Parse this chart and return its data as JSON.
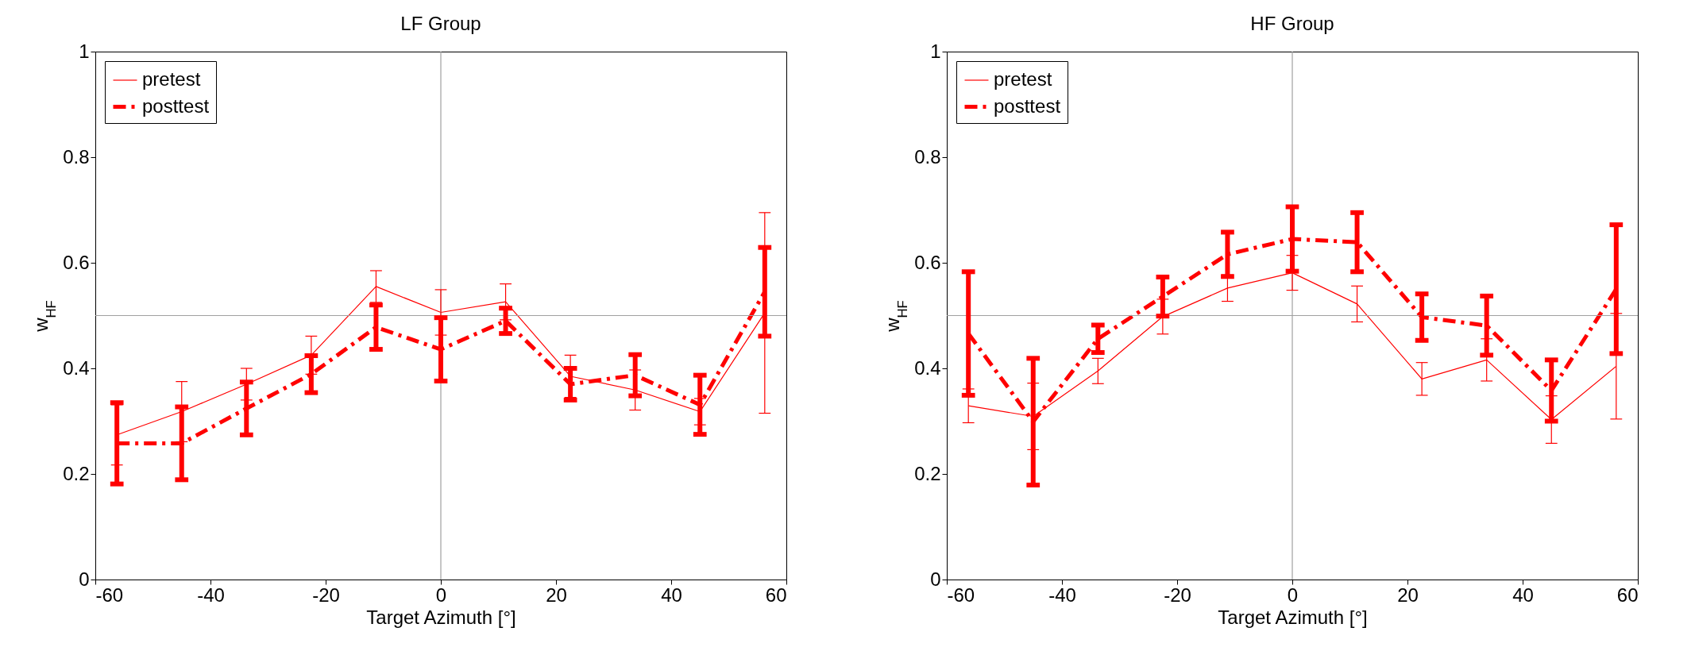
{
  "chart_data": [
    {
      "type": "line",
      "title": "LF Group",
      "xlabel": "Target Azimuth [°]",
      "ylabel": "w$_{HF}$",
      "x": [
        -56.25,
        -45,
        -33.75,
        -22.5,
        -11.25,
        0,
        11.25,
        22.5,
        33.75,
        45,
        56.25
      ],
      "series": [
        {
          "name": "pretest",
          "color": "#ff0000",
          "line_style": "solid",
          "values": [
            0.274,
            0.318,
            0.37,
            0.425,
            0.555,
            0.506,
            0.526,
            0.385,
            0.359,
            0.318,
            0.505
          ],
          "errors": [
            0.057,
            0.057,
            0.03,
            0.036,
            0.03,
            0.043,
            0.034,
            0.04,
            0.038,
            0.025,
            0.19
          ]
        },
        {
          "name": "posttest",
          "color": "#ff0000",
          "line_style": "dashed",
          "values": [
            0.258,
            0.258,
            0.324,
            0.389,
            0.478,
            0.436,
            0.49,
            0.37,
            0.387,
            0.331,
            0.545
          ],
          "errors": [
            0.077,
            0.069,
            0.05,
            0.035,
            0.042,
            0.06,
            0.024,
            0.03,
            0.039,
            0.056,
            0.084
          ]
        }
      ],
      "xlim": [
        -60,
        60
      ],
      "xticks": [
        -60,
        -40,
        -20,
        0,
        20,
        40,
        60
      ],
      "ylim": [
        0,
        1
      ],
      "yticks": [
        0,
        0.2,
        0.4,
        0.6,
        0.8,
        1
      ],
      "ref_lines": [
        {
          "axis": "x",
          "value": 0,
          "color": "#a0a0a0"
        },
        {
          "axis": "y",
          "value": 0.5,
          "color": "#a0a0a0"
        }
      ],
      "legend": "top left",
      "grid": false
    },
    {
      "type": "line",
      "title": "HF Group",
      "xlabel": "Target Azimuth [°]",
      "ylabel": "w$_{HF}$",
      "x": [
        -56.25,
        -45,
        -33.75,
        -22.5,
        -11.25,
        0,
        11.25,
        22.5,
        33.75,
        45,
        56.25
      ],
      "series": [
        {
          "name": "pretest",
          "color": "#ff0000",
          "line_style": "solid",
          "values": [
            0.329,
            0.309,
            0.395,
            0.498,
            0.552,
            0.581,
            0.522,
            0.38,
            0.416,
            0.303,
            0.404
          ],
          "errors": [
            0.032,
            0.063,
            0.024,
            0.033,
            0.025,
            0.033,
            0.034,
            0.031,
            0.04,
            0.045,
            0.1
          ]
        },
        {
          "name": "posttest",
          "color": "#ff0000",
          "line_style": "dashed",
          "values": [
            0.466,
            0.299,
            0.456,
            0.536,
            0.616,
            0.645,
            0.639,
            0.497,
            0.481,
            0.358,
            0.55
          ],
          "errors": [
            0.117,
            0.12,
            0.026,
            0.037,
            0.042,
            0.061,
            0.056,
            0.044,
            0.056,
            0.058,
            0.122
          ]
        }
      ],
      "xlim": [
        -60,
        60
      ],
      "xticks": [
        -60,
        -40,
        -20,
        0,
        20,
        40,
        60
      ],
      "ylim": [
        0,
        1
      ],
      "yticks": [
        0,
        0.2,
        0.4,
        0.6,
        0.8,
        1
      ],
      "ref_lines": [
        {
          "axis": "x",
          "value": 0,
          "color": "#a0a0a0"
        },
        {
          "axis": "y",
          "value": 0.5,
          "color": "#a0a0a0"
        }
      ],
      "legend": "top left",
      "grid": false
    }
  ]
}
